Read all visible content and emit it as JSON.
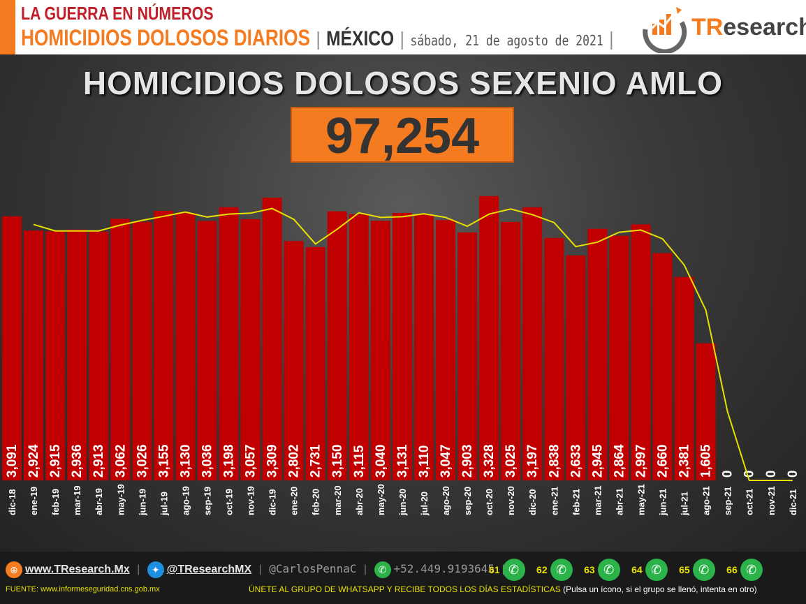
{
  "header": {
    "title": "LA GUERRA EN NÚMEROS",
    "subtitle": "HOMICIDIOS DOLOSOS DIARIOS",
    "country": "MÉXICO",
    "date": "sábado, 21 de agosto de 2021",
    "separator": "|",
    "logo_text_accent": "TR",
    "logo_text_rest": "esearch"
  },
  "chart": {
    "title": "HOMICIDIOS DOLOSOS SEXENIO AMLO",
    "total": "97,254"
  },
  "chart_data": {
    "type": "bar",
    "title": "HOMICIDIOS DOLOSOS SEXENIO AMLO",
    "categories": [
      "dic-18",
      "ene-19",
      "feb-19",
      "mar-19",
      "abr-19",
      "may-19",
      "jun-19",
      "jul-19",
      "ago-19",
      "sep-19",
      "oct-19",
      "nov-19",
      "dic-19",
      "ene-20",
      "feb-20",
      "mar-20",
      "abr-20",
      "may-20",
      "jun-20",
      "jul-20",
      "ago-20",
      "sep-20",
      "oct-20",
      "nov-20",
      "dic-20",
      "ene-21",
      "feb-21",
      "mar-21",
      "abr-21",
      "may-21",
      "jun-21",
      "jul-21",
      "ago-21",
      "sep-21",
      "oct-21",
      "nov-21",
      "dic-21"
    ],
    "values": [
      3091,
      2924,
      2915,
      2936,
      2913,
      3062,
      3026,
      3155,
      3130,
      3036,
      3198,
      3057,
      3309,
      2802,
      2731,
      3150,
      3115,
      3040,
      3131,
      3110,
      3047,
      2903,
      3328,
      3025,
      3197,
      2838,
      2633,
      2945,
      2864,
      2997,
      2660,
      2381,
      1605,
      0,
      0,
      0,
      0
    ],
    "value_labels": [
      "3,091",
      "2,924",
      "2,915",
      "2,936",
      "2,913",
      "3,062",
      "3,026",
      "3,155",
      "3,130",
      "3,036",
      "3,198",
      "3,057",
      "3,309",
      "2,802",
      "2,731",
      "3,150",
      "3,115",
      "3,040",
      "3,131",
      "3,110",
      "3,047",
      "2,903",
      "3,328",
      "3,025",
      "3,197",
      "2,838",
      "2,633",
      "2,945",
      "2,864",
      "2,997",
      "2,660",
      "2,381",
      "1,605",
      "0",
      "0",
      "0",
      "0"
    ],
    "trend_line": [
      null,
      2996,
      2920,
      2920,
      2920,
      2988,
      3044,
      3091,
      3142,
      3083,
      3117,
      3128,
      3183,
      3056,
      2767,
      2941,
      3133,
      3078,
      3086,
      3121,
      3079,
      2975,
      3116,
      3177,
      3111,
      3018,
      2736,
      2789,
      2905,
      2931,
      2829,
      2521,
      1993,
      803,
      0,
      0,
      0
    ],
    "ylim": [
      0,
      3400
    ],
    "bar_color": "#c00000",
    "trend_color": "#e8e000",
    "grid": false
  },
  "footer": {
    "website": "www.TResearch.Mx",
    "twitter": "@TResearchMX",
    "handle2": "@CarlosPennaC",
    "phone": "+52.449.9193645",
    "groups": [
      "61",
      "62",
      "63",
      "64",
      "65",
      "66"
    ],
    "source": "FUENTE: www.informeseguridad.cns.gob.mx",
    "cta": "ÚNETE AL GRUPO DE WHATSAPP Y RECIBE TODOS LOS DÍAS ESTADÍSTICAS",
    "cta_note": "(Pulsa un ícono, si el grupo se llenó, intenta en otro)",
    "colors": {
      "accent": "#f47b20",
      "yellow": "#e8e000"
    }
  }
}
